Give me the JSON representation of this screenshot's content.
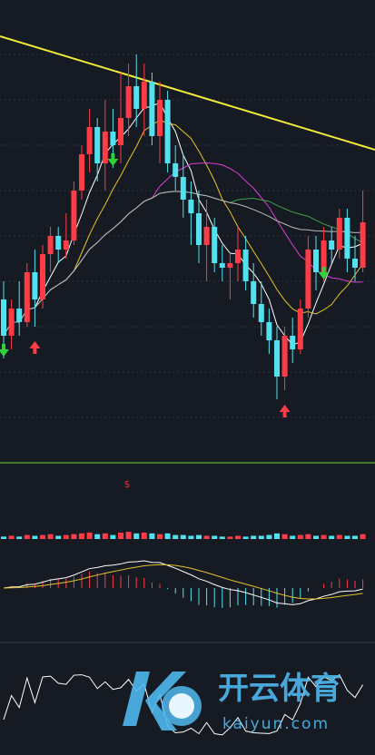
{
  "chart_data": {
    "type": "candlestick",
    "open": [
      36,
      28,
      34,
      31,
      42,
      36,
      46,
      50,
      47,
      49,
      60,
      68,
      74,
      66,
      73,
      70,
      76,
      83,
      78,
      84,
      72,
      80,
      66,
      63,
      58,
      55,
      48,
      52,
      44,
      43,
      44,
      47,
      40,
      35,
      31,
      27,
      19,
      28,
      25,
      34,
      47,
      42,
      49,
      47,
      54,
      45,
      43
    ],
    "high": [
      40,
      36,
      40,
      44,
      47,
      48,
      52,
      52,
      55,
      62,
      70,
      78,
      76,
      80,
      78,
      86,
      88,
      90,
      88,
      86,
      84,
      82,
      70,
      68,
      62,
      60,
      58,
      54,
      48,
      46,
      52,
      50,
      44,
      40,
      34,
      30,
      30,
      32,
      36,
      50,
      50,
      52,
      52,
      56,
      56,
      50,
      60
    ],
    "low": [
      23,
      25,
      28,
      30,
      30,
      34,
      42,
      44,
      45,
      48,
      58,
      64,
      62,
      60,
      65,
      66,
      72,
      74,
      72,
      70,
      66,
      64,
      60,
      54,
      48,
      44,
      40,
      42,
      40,
      36,
      40,
      38,
      32,
      28,
      24,
      14,
      16,
      22,
      24,
      32,
      38,
      40,
      44,
      45,
      42,
      40,
      42
    ],
    "close": [
      28,
      34,
      31,
      42,
      36,
      46,
      50,
      47,
      49,
      60,
      68,
      74,
      66,
      73,
      70,
      76,
      83,
      78,
      84,
      72,
      80,
      66,
      63,
      58,
      55,
      48,
      52,
      44,
      43,
      44,
      47,
      40,
      35,
      31,
      27,
      19,
      28,
      25,
      34,
      47,
      42,
      49,
      47,
      54,
      45,
      43,
      53
    ],
    "volume": [
      3,
      4,
      3,
      5,
      4,
      5,
      6,
      4,
      5,
      6,
      7,
      8,
      6,
      7,
      5,
      8,
      9,
      7,
      8,
      7,
      6,
      7,
      5,
      5,
      4,
      5,
      4,
      4,
      3,
      3,
      4,
      3,
      4,
      4,
      5,
      7,
      6,
      4,
      5,
      6,
      4,
      5,
      4,
      5,
      4,
      4,
      6
    ],
    "up_color": "#ff3b45",
    "down_color": "#54e1ef",
    "ylim": [
      0,
      102
    ],
    "yticks": [
      10,
      20,
      30,
      40,
      50,
      60,
      70,
      80,
      90
    ],
    "grid": true,
    "trend_line": [
      94,
      69
    ],
    "buy_signals": [
      4,
      36
    ],
    "sell_signals": [
      0,
      14,
      41
    ]
  },
  "overlay": {
    "marker": "$",
    "watermark_title": "开云体育",
    "watermark_url": "kaiyun.com"
  }
}
